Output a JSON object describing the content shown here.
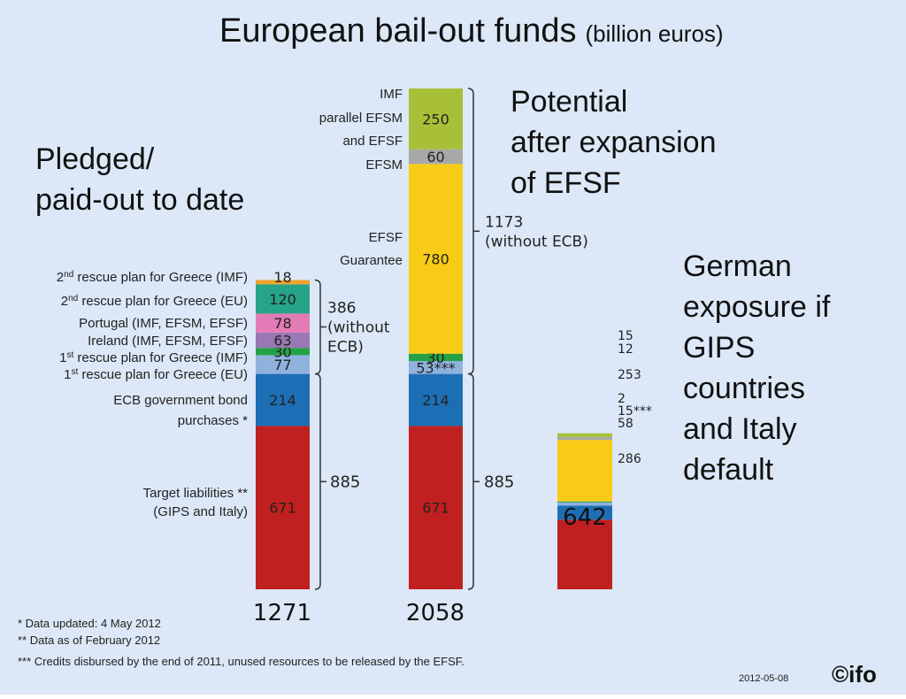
{
  "colors": {
    "background": "#dce8f7",
    "red": "#c0201f",
    "blue": "#1d6fb5",
    "light_blue": "#8fb2dc",
    "green": "#23a144",
    "purple": "#9a78b4",
    "pink": "#e47bb6",
    "teal": "#26a487",
    "orange": "#f0a32f",
    "yellow": "#f8cc16",
    "gray": "#a8a8a8",
    "olive": "#a7c038"
  },
  "texts": {
    "title_main": "European bail-out funds",
    "title_unit": "(billion euros)",
    "heading_pledged_1": "Pledged/",
    "heading_pledged_2": "paid-out to date",
    "heading_potential_1": "Potential",
    "heading_potential_2": "after expansion",
    "heading_potential_3": "of EFSF",
    "heading_german_1": "German",
    "heading_german_2": "exposure if",
    "heading_german_3": "GIPS",
    "heading_german_4": "countries",
    "heading_german_5": "and Italy",
    "heading_german_6": "default",
    "footnote_1": "* Data updated: 4 May 2012",
    "footnote_2": "** Data as of February 2012",
    "footnote_3": "*** Credits disbursed by the end of 2011, unused resources to be released by the EFSF.",
    "date": "2012-05-08",
    "logo": "©ifo"
  },
  "chart_data": {
    "type": "bar",
    "stacked": true,
    "unit": "billion euros",
    "bars": [
      {
        "total_label": "1271",
        "segments": [
          {
            "label": "Target liabilities ** (GIPS and Italy)",
            "value": 671,
            "color_key": "red"
          },
          {
            "label": "ECB government bond purchases *",
            "value": 214,
            "color_key": "blue"
          },
          {
            "label": "1st rescue plan for Greece (EU)",
            "value": 77,
            "color_key": "light_blue"
          },
          {
            "label": "1st rescue plan for Greece (IMF)",
            "value": 30,
            "color_key": "green"
          },
          {
            "label": "Ireland (IMF, EFSM, EFSF)",
            "value": 63,
            "color_key": "purple"
          },
          {
            "label": "Portugal (IMF, EFSM, EFSF)",
            "value": 78,
            "color_key": "pink"
          },
          {
            "label": "2nd rescue plan for Greece (EU)",
            "value": 120,
            "color_key": "teal"
          },
          {
            "label": "2nd rescue plan for Greece (IMF)",
            "value": 18,
            "color_key": "orange"
          }
        ],
        "brackets": [
          {
            "label": "885",
            "from": 0,
            "to": 885
          },
          {
            "label": "386 (without ECB)",
            "from": 885,
            "to": 1271
          }
        ]
      },
      {
        "total_label": "2058",
        "segments": [
          {
            "label": "",
            "value": 671,
            "color_key": "red"
          },
          {
            "label": "",
            "value": 214,
            "color_key": "blue"
          },
          {
            "label": "",
            "value": 53,
            "value_label": "53***",
            "color_key": "light_blue"
          },
          {
            "label": "",
            "value": 30,
            "color_key": "green"
          },
          {
            "label": "EFSF Guarantee",
            "value": 780,
            "color_key": "yellow"
          },
          {
            "label": "EFSM",
            "value": 60,
            "color_key": "gray"
          },
          {
            "label": "IMF parallel EFSM and EFSF",
            "value": 250,
            "color_key": "olive"
          }
        ],
        "brackets": [
          {
            "label": "885",
            "from": 0,
            "to": 885
          },
          {
            "label": "1173 (without ECB)",
            "from": 885,
            "to": 2058
          }
        ]
      },
      {
        "total_label": "642",
        "segments": [
          {
            "label": "",
            "value": 286,
            "color_key": "red"
          },
          {
            "label": "",
            "value": 58,
            "color_key": "blue"
          },
          {
            "label": "",
            "value": 15,
            "value_label": "15***",
            "color_key": "light_blue"
          },
          {
            "label": "",
            "value": 2,
            "color_key": "green"
          },
          {
            "label": "",
            "value": 253,
            "color_key": "yellow"
          },
          {
            "label": "",
            "value": 12,
            "color_key": "gray"
          },
          {
            "label": "",
            "value": 15,
            "color_key": "olive"
          }
        ]
      }
    ]
  }
}
